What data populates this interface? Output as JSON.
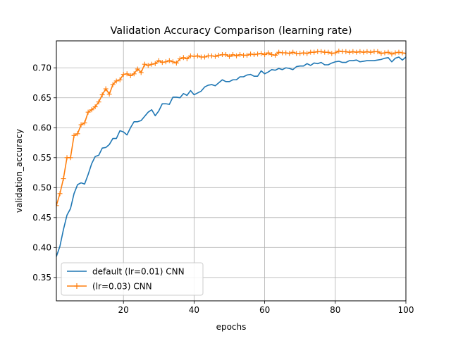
{
  "chart_data": {
    "type": "line",
    "title": "Validation Accuracy Comparison (learning rate)",
    "xlabel": "epochs",
    "ylabel": "validation_accuracy",
    "xlim": [
      1,
      100
    ],
    "ylim": [
      0.311,
      0.745
    ],
    "xticks": [
      20,
      40,
      60,
      80,
      100
    ],
    "xtick_labels": [
      "20",
      "40",
      "60",
      "80",
      "100"
    ],
    "yticks": [
      0.35,
      0.4,
      0.45,
      0.5,
      0.55,
      0.6,
      0.65,
      0.7
    ],
    "ytick_labels": [
      "0.35",
      "0.40",
      "0.45",
      "0.50",
      "0.55",
      "0.60",
      "0.65",
      "0.70"
    ],
    "grid": true,
    "legend_position": "lower-left",
    "series": [
      {
        "name": "default (lr=0.01) CNN",
        "color": "#1f77b4",
        "marker": "none",
        "x": [
          1,
          2,
          3,
          4,
          5,
          6,
          7,
          8,
          9,
          10,
          11,
          12,
          13,
          14,
          15,
          16,
          17,
          18,
          19,
          20,
          21,
          22,
          23,
          24,
          25,
          26,
          27,
          28,
          29,
          30,
          31,
          32,
          33,
          34,
          35,
          36,
          37,
          38,
          39,
          40,
          41,
          42,
          43,
          44,
          45,
          46,
          47,
          48,
          49,
          50,
          51,
          52,
          53,
          54,
          55,
          56,
          57,
          58,
          59,
          60,
          61,
          62,
          63,
          64,
          65,
          66,
          67,
          68,
          69,
          70,
          71,
          72,
          73,
          74,
          75,
          76,
          77,
          78,
          79,
          80,
          81,
          82,
          83,
          84,
          85,
          86,
          87,
          88,
          89,
          90,
          91,
          92,
          93,
          94,
          95,
          96,
          97,
          98,
          99,
          100
        ],
        "values": [
          0.385,
          0.402,
          0.43,
          0.454,
          0.465,
          0.49,
          0.505,
          0.508,
          0.506,
          0.522,
          0.54,
          0.552,
          0.554,
          0.566,
          0.567,
          0.572,
          0.582,
          0.582,
          0.595,
          0.593,
          0.588,
          0.6,
          0.61,
          0.61,
          0.612,
          0.619,
          0.626,
          0.63,
          0.62,
          0.628,
          0.64,
          0.64,
          0.639,
          0.651,
          0.651,
          0.65,
          0.657,
          0.654,
          0.662,
          0.655,
          0.658,
          0.661,
          0.668,
          0.671,
          0.672,
          0.67,
          0.675,
          0.68,
          0.677,
          0.677,
          0.68,
          0.68,
          0.685,
          0.685,
          0.688,
          0.689,
          0.686,
          0.686,
          0.695,
          0.69,
          0.693,
          0.697,
          0.696,
          0.699,
          0.697,
          0.7,
          0.699,
          0.697,
          0.702,
          0.703,
          0.703,
          0.707,
          0.704,
          0.708,
          0.707,
          0.709,
          0.705,
          0.705,
          0.708,
          0.71,
          0.711,
          0.709,
          0.709,
          0.712,
          0.712,
          0.713,
          0.71,
          0.711,
          0.712,
          0.712,
          0.712,
          0.713,
          0.714,
          0.716,
          0.717,
          0.71,
          0.716,
          0.718,
          0.713,
          0.718
        ]
      },
      {
        "name": "(lr=0.03) CNN",
        "color": "#ff7f0e",
        "marker": "plus",
        "x": [
          1,
          2,
          3,
          4,
          5,
          6,
          7,
          8,
          9,
          10,
          11,
          12,
          13,
          14,
          15,
          16,
          17,
          18,
          19,
          20,
          21,
          22,
          23,
          24,
          25,
          26,
          27,
          28,
          29,
          30,
          31,
          32,
          33,
          34,
          35,
          36,
          37,
          38,
          39,
          40,
          41,
          42,
          43,
          44,
          45,
          46,
          47,
          48,
          49,
          50,
          51,
          52,
          53,
          54,
          55,
          56,
          57,
          58,
          59,
          60,
          61,
          62,
          63,
          64,
          65,
          66,
          67,
          68,
          69,
          70,
          71,
          72,
          73,
          74,
          75,
          76,
          77,
          78,
          79,
          80,
          81,
          82,
          83,
          84,
          85,
          86,
          87,
          88,
          89,
          90,
          91,
          92,
          93,
          94,
          95,
          96,
          97,
          98,
          99,
          100
        ],
        "values": [
          0.47,
          0.49,
          0.515,
          0.55,
          0.55,
          0.587,
          0.59,
          0.605,
          0.608,
          0.626,
          0.63,
          0.635,
          0.643,
          0.655,
          0.665,
          0.656,
          0.672,
          0.678,
          0.68,
          0.689,
          0.69,
          0.687,
          0.69,
          0.698,
          0.692,
          0.706,
          0.704,
          0.706,
          0.707,
          0.712,
          0.709,
          0.71,
          0.712,
          0.71,
          0.708,
          0.715,
          0.717,
          0.715,
          0.72,
          0.719,
          0.72,
          0.718,
          0.718,
          0.72,
          0.72,
          0.719,
          0.721,
          0.722,
          0.722,
          0.719,
          0.722,
          0.72,
          0.722,
          0.721,
          0.721,
          0.723,
          0.722,
          0.723,
          0.724,
          0.722,
          0.725,
          0.722,
          0.721,
          0.726,
          0.725,
          0.725,
          0.724,
          0.726,
          0.724,
          0.724,
          0.725,
          0.724,
          0.726,
          0.726,
          0.727,
          0.727,
          0.726,
          0.726,
          0.724,
          0.725,
          0.728,
          0.727,
          0.727,
          0.726,
          0.727,
          0.726,
          0.727,
          0.726,
          0.727,
          0.726,
          0.727,
          0.727,
          0.724,
          0.725,
          0.726,
          0.723,
          0.725,
          0.726,
          0.725,
          0.724
        ]
      }
    ]
  }
}
